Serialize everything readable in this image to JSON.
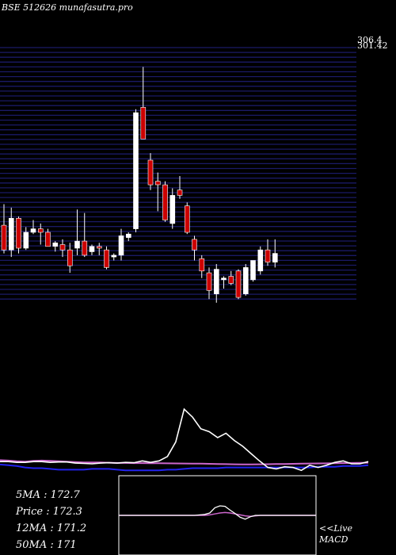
{
  "header": {
    "title": "BSE 512626  munafasutra.pro"
  },
  "stats": {
    "ma5_label": "5MA : 172.7",
    "price_label": "Price   : 172.3",
    "ma12_label": "12MA : 171.2",
    "ma50_label": "50MA : 171"
  },
  "macd_panel": {
    "live_label": "<<Live",
    "macd_label": "MACD"
  },
  "colors": {
    "background": "#000000",
    "bull": "#ffffff",
    "bear": "#cc0000",
    "grid": "#1a1a66",
    "ma_short": "#ffffff",
    "ma_mid": "#cc66cc",
    "ma_long": "#2222ee",
    "macd_line": "#ffffff",
    "signal_line": "#cc66cc"
  },
  "chart_data": {
    "type": "candlestick",
    "title": "BSE 512626  munafasutra.pro",
    "y_axis_top_labels": [
      "306.4",
      "301.42"
    ],
    "ylim": [
      155,
      306.4
    ],
    "grid": true,
    "candles": [
      {
        "o": 200,
        "h": 212,
        "l": 184,
        "c": 186
      },
      {
        "o": 186,
        "h": 210,
        "l": 182,
        "c": 204
      },
      {
        "o": 204,
        "h": 205,
        "l": 184,
        "c": 187
      },
      {
        "o": 187,
        "h": 199,
        "l": 186,
        "c": 196
      },
      {
        "o": 196,
        "h": 203,
        "l": 195,
        "c": 198
      },
      {
        "o": 198,
        "h": 201,
        "l": 189,
        "c": 196
      },
      {
        "o": 196,
        "h": 198,
        "l": 188,
        "c": 188
      },
      {
        "o": 188,
        "h": 191,
        "l": 185,
        "c": 190
      },
      {
        "o": 189,
        "h": 192,
        "l": 182,
        "c": 186
      },
      {
        "o": 186,
        "h": 190,
        "l": 173,
        "c": 177
      },
      {
        "o": 187,
        "h": 209,
        "l": 183,
        "c": 191
      },
      {
        "o": 191,
        "h": 207,
        "l": 182,
        "c": 183
      },
      {
        "o": 185,
        "h": 189,
        "l": 183,
        "c": 188
      },
      {
        "o": 188,
        "h": 190,
        "l": 183,
        "c": 187
      },
      {
        "o": 186,
        "h": 188,
        "l": 175,
        "c": 176
      },
      {
        "o": 182,
        "h": 184,
        "l": 180,
        "c": 183
      },
      {
        "o": 183,
        "h": 198,
        "l": 180,
        "c": 194
      },
      {
        "o": 193,
        "h": 196,
        "l": 191,
        "c": 195
      },
      {
        "o": 198,
        "h": 266,
        "l": 196,
        "c": 264
      },
      {
        "o": 267,
        "h": 290,
        "l": 249,
        "c": 249
      },
      {
        "o": 237,
        "h": 241,
        "l": 220,
        "c": 223
      },
      {
        "o": 225,
        "h": 230,
        "l": 208,
        "c": 223
      },
      {
        "o": 223,
        "h": 225,
        "l": 202,
        "c": 203
      },
      {
        "o": 201,
        "h": 221,
        "l": 198,
        "c": 217
      },
      {
        "o": 220,
        "h": 228,
        "l": 215,
        "c": 217
      },
      {
        "o": 211,
        "h": 213,
        "l": 195,
        "c": 196
      },
      {
        "o": 192,
        "h": 194,
        "l": 180,
        "c": 186
      },
      {
        "o": 181,
        "h": 183,
        "l": 170,
        "c": 174
      },
      {
        "o": 173,
        "h": 176,
        "l": 158,
        "c": 163
      },
      {
        "o": 161,
        "h": 178,
        "l": 156,
        "c": 175
      },
      {
        "o": 169,
        "h": 171,
        "l": 164,
        "c": 170
      },
      {
        "o": 171,
        "h": 174,
        "l": 166,
        "c": 167
      },
      {
        "o": 174,
        "h": 175,
        "l": 158,
        "c": 159
      },
      {
        "o": 161,
        "h": 178,
        "l": 160,
        "c": 176
      },
      {
        "o": 169,
        "h": 180,
        "l": 168,
        "c": 180
      },
      {
        "o": 174,
        "h": 188,
        "l": 172,
        "c": 186
      },
      {
        "o": 186,
        "h": 192,
        "l": 177,
        "c": 179
      },
      {
        "o": 179,
        "h": 192,
        "l": 176,
        "c": 184
      }
    ],
    "indicator_panel": {
      "ma_short": [
        0.3,
        0.3,
        0.2,
        0.2,
        0.3,
        0.3,
        0.2,
        0.25,
        0.25,
        0.1,
        0.05,
        0.0,
        0.1,
        0.15,
        0.1,
        0.2,
        0.15,
        0.4,
        0.2,
        0.4,
        1.0,
        3.0,
        7.5,
        6.4,
        4.8,
        4.4,
        3.6,
        4.2,
        3.2,
        2.4,
        1.4,
        0.4,
        -0.5,
        -0.7,
        -0.4,
        -0.5,
        -0.9,
        -0.2,
        -0.5,
        -0.2,
        0.2,
        0.4,
        0.0,
        0.0,
        0.3
      ],
      "ma_mid": [
        0.5,
        0.45,
        0.35,
        0.3,
        0.4,
        0.45,
        0.4,
        0.35,
        0.3,
        0.25,
        0.2,
        0.2,
        0.18,
        0.15,
        0.12,
        0.12,
        0.1,
        0.1,
        0.08,
        0.08,
        0.06,
        0.05,
        0.04,
        0.03,
        0.02,
        0.0,
        -0.02,
        -0.04,
        -0.06,
        -0.08,
        -0.08,
        -0.06,
        -0.05,
        -0.03,
        -0.02,
        0.0,
        0.02,
        0.04,
        0.05,
        0.06,
        0.08,
        0.1,
        0.12,
        0.14,
        0.15
      ],
      "ma_long": [
        -0.1,
        -0.2,
        -0.3,
        -0.5,
        -0.6,
        -0.6,
        -0.7,
        -0.8,
        -0.8,
        -0.8,
        -0.8,
        -0.7,
        -0.7,
        -0.7,
        -0.8,
        -0.9,
        -0.9,
        -0.9,
        -0.9,
        -0.9,
        -0.8,
        -0.8,
        -0.7,
        -0.6,
        -0.6,
        -0.6,
        -0.6,
        -0.5,
        -0.5,
        -0.5,
        -0.5,
        -0.5,
        -0.5,
        -0.5,
        -0.5,
        -0.5,
        -0.5,
        -0.5,
        -0.4,
        -0.4,
        -0.4,
        -0.3,
        -0.3,
        -0.3,
        -0.2
      ]
    },
    "macd_panel": {
      "macd": [
        0.0,
        0.0,
        0.0,
        0.0,
        0.0,
        0.0,
        0.0,
        0.0,
        0.0,
        0.0,
        0.0,
        0.0,
        0.0,
        0.0,
        0.0,
        0.0,
        0.05,
        0.1,
        0.25,
        0.8,
        1.0,
        0.95,
        0.55,
        0.2,
        -0.2,
        -0.4,
        -0.15,
        0.0,
        0.0,
        0.0,
        0.0,
        0.0,
        0.0,
        0.0,
        0.0,
        0.0,
        0.0,
        0.0,
        0.0,
        0.0
      ],
      "signal": [
        0.0,
        0.0,
        0.0,
        0.0,
        0.0,
        0.0,
        0.0,
        0.0,
        0.0,
        0.0,
        0.0,
        0.0,
        0.0,
        0.0,
        0.0,
        0.0,
        0.0,
        0.0,
        0.05,
        0.15,
        0.25,
        0.3,
        0.25,
        0.15,
        0.05,
        -0.05,
        -0.1,
        -0.05,
        0.0,
        0.0,
        0.0,
        0.0,
        0.0,
        0.0,
        0.0,
        0.0,
        0.0,
        0.0,
        0.0,
        0.0
      ]
    }
  }
}
